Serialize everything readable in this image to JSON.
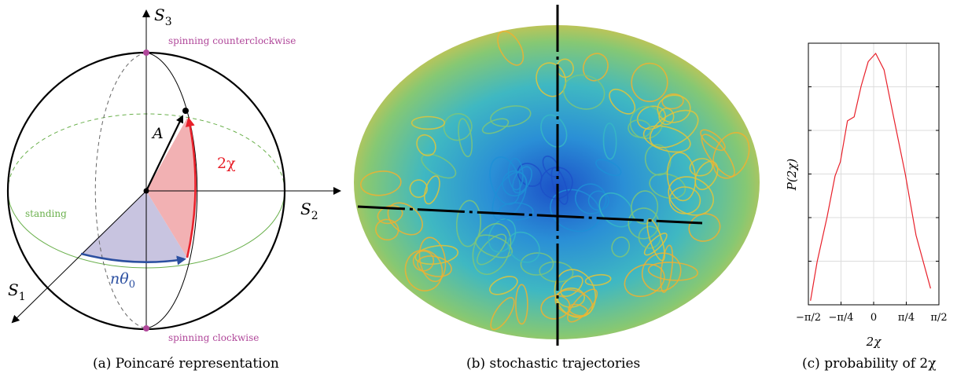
{
  "panel_a": {
    "axis_s3": "S",
    "axis_s3_sub": "3",
    "axis_s2": "S",
    "axis_s2_sub": "2",
    "axis_s1": "S",
    "axis_s1_sub": "1",
    "pole_top_label": "spinning counterclockwise",
    "pole_bottom_label": "spinning clockwise",
    "equator_label": "standing",
    "vector_label": "A",
    "angle_chi_label": "2χ",
    "angle_theta_label": "nθ",
    "angle_theta_sub": "0",
    "caption": "(a) Poincaré representation",
    "colors": {
      "pole": "#b0479a",
      "equator": "#6ab04c",
      "chi": "#e8202a",
      "theta": "#2b4fa0"
    }
  },
  "panel_b": {
    "caption": "(b) stochastic trajectories",
    "colormap": [
      "#1c50c8",
      "#1f8fd6",
      "#36b7c4",
      "#7cc67a",
      "#e2c43a",
      "#f0b030"
    ]
  },
  "panel_c": {
    "caption": "(c) probability of 2χ",
    "line_color": "#e8202a"
  },
  "chart_data": {
    "type": "line",
    "title": "",
    "xlabel": "2χ",
    "ylabel": "P(2χ)",
    "xlim": [
      -1.5708,
      1.5708
    ],
    "x_ticks": [
      {
        "value": -1.5708,
        "label": "−π/2"
      },
      {
        "value": -0.7854,
        "label": "−π/4"
      },
      {
        "value": 0,
        "label": "0"
      },
      {
        "value": 0.7854,
        "label": "π/4"
      },
      {
        "value": 1.5708,
        "label": "π/2"
      }
    ],
    "grid": true,
    "series": [
      {
        "values": [
          {
            "x": -1.52,
            "y": 0.02
          },
          {
            "x": -1.36,
            "y": 0.21
          },
          {
            "x": -1.12,
            "y": 0.43
          },
          {
            "x": -0.93,
            "y": 0.63
          },
          {
            "x": -0.8,
            "y": 0.7
          },
          {
            "x": -0.63,
            "y": 0.9
          },
          {
            "x": -0.47,
            "y": 0.92
          },
          {
            "x": -0.3,
            "y": 1.07
          },
          {
            "x": -0.13,
            "y": 1.19
          },
          {
            "x": 0.05,
            "y": 1.23
          },
          {
            "x": 0.25,
            "y": 1.15
          },
          {
            "x": 0.47,
            "y": 0.93
          },
          {
            "x": 0.76,
            "y": 0.64
          },
          {
            "x": 1.02,
            "y": 0.34
          },
          {
            "x": 1.37,
            "y": 0.08
          }
        ]
      }
    ]
  }
}
